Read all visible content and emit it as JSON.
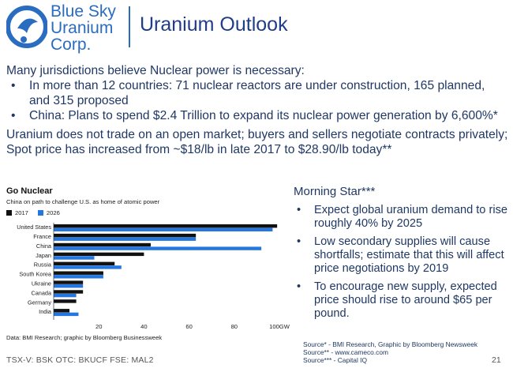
{
  "logo": {
    "line1": "Blue Sky",
    "line2": "Uranium",
    "line3": "Corp."
  },
  "slide_title": "Uranium Outlook",
  "intro": "Many jurisdictions believe Nuclear power is necessary:",
  "bullets": [
    "In more than 12 countries: 71 nuclear reactors are under construction, 165 planned, and 315 proposed",
    "China: Plans to spend $2.4 Trillion to expand its nuclear power generation by 6,600%*"
  ],
  "market_note": "Uranium does not trade on an open market; buyers and sellers negotiate contracts privately; Spot price has increased from ~$18/lb in late 2017 to $28.90/lb today**",
  "chart_data": {
    "type": "bar",
    "orientation": "horizontal",
    "title": "Go Nuclear",
    "subtitle": "China on path to challenge U.S. as home of atomic power",
    "categories": [
      "United States",
      "France",
      "China",
      "Japan",
      "Russia",
      "South Korea",
      "Ukraine",
      "Canada",
      "Germany",
      "India"
    ],
    "series": [
      {
        "name": "2017",
        "color": "#111111",
        "values": [
          99,
          63,
          43,
          40,
          27,
          22,
          13,
          13,
          10,
          7
        ]
      },
      {
        "name": "2026",
        "color": "#2477e0",
        "values": [
          97,
          63,
          92,
          18,
          30,
          22,
          13,
          10,
          0,
          11
        ]
      }
    ],
    "x_ticks": [
      "20",
      "40",
      "60",
      "80",
      "100GW"
    ],
    "x_tick_values": [
      20,
      40,
      60,
      80,
      100
    ],
    "xlim": [
      0,
      100
    ],
    "grid": false,
    "legend_position": "top-left",
    "source": "Data: BMI Research; graphic by Bloomberg Businessweek"
  },
  "morning_star": {
    "title": "Morning Star***",
    "bullets": [
      "Expect global uranium demand to rise roughly 40% by 2025",
      "Low secondary supplies will cause shortfalls; estimate that this will affect price negotiations by 2019",
      "To encourage new supply, expected price should rise to around $65 per pound."
    ]
  },
  "sources": [
    "Source* - BMI Research, Graphic by Bloomberg Newsweek",
    "Source** - www.cameco.com",
    "Source*** - Capital IQ"
  ],
  "footer": {
    "ticker": "TSX-V: BSK  OTC: BKUCF  FSE: MAL2",
    "page": "21"
  },
  "colors": {
    "brand_blue": "#2a6cc0",
    "text_navy": "#1f3864",
    "series_2026": "#2477e0",
    "series_2017": "#111111"
  }
}
